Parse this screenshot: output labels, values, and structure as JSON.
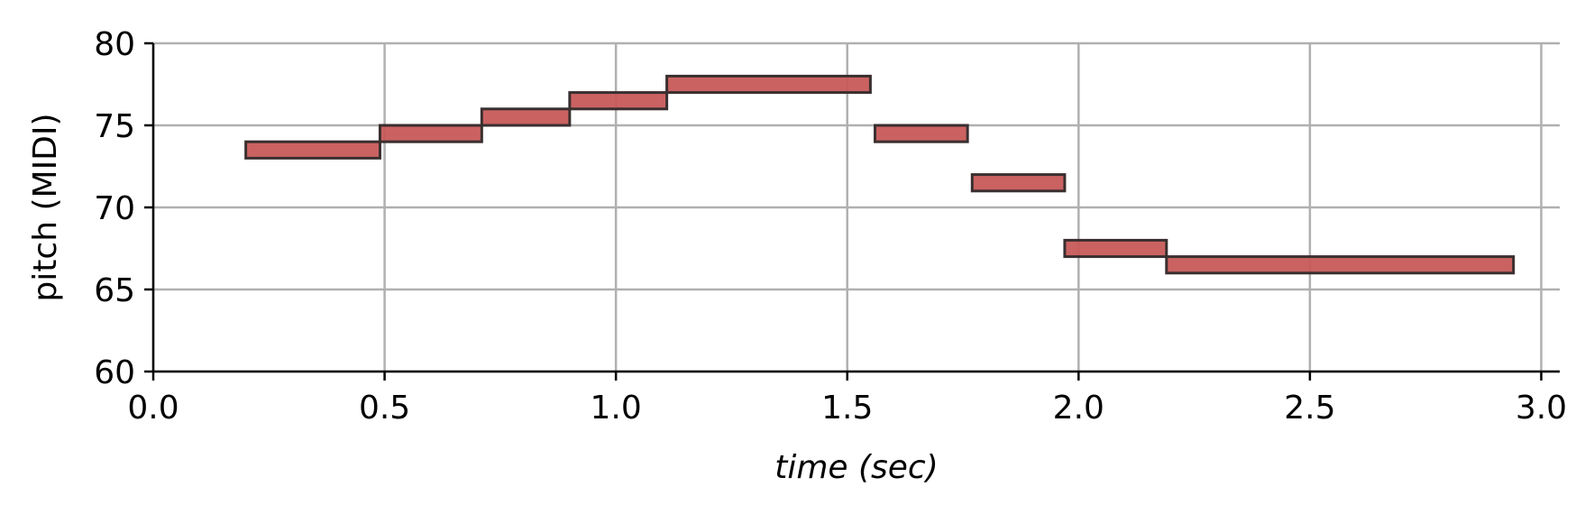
{
  "chart_data": {
    "type": "piano-roll",
    "title": "",
    "xlabel": "time (sec)",
    "ylabel": "pitch (MIDI)",
    "xlim": [
      0.0,
      3.04
    ],
    "ylim": [
      60,
      80
    ],
    "xticks": [
      0.0,
      0.5,
      1.0,
      1.5,
      2.0,
      2.5,
      3.0
    ],
    "xtick_labels": [
      "0.0",
      "0.5",
      "1.0",
      "1.5",
      "2.0",
      "2.5",
      "3.0"
    ],
    "yticks": [
      60,
      65,
      70,
      75,
      80
    ],
    "ytick_labels": [
      "60",
      "65",
      "70",
      "75",
      "80"
    ],
    "grid": true,
    "colors": {
      "note_fill": "#c85a5a",
      "note_edge": "#3a2f2f",
      "grid": "#b0b0b0",
      "axis": "#000000"
    },
    "notes": [
      {
        "start": 0.2,
        "end": 0.49,
        "pitch": 73
      },
      {
        "start": 0.49,
        "end": 0.71,
        "pitch": 74
      },
      {
        "start": 0.71,
        "end": 0.9,
        "pitch": 75
      },
      {
        "start": 0.9,
        "end": 1.11,
        "pitch": 76
      },
      {
        "start": 1.11,
        "end": 1.55,
        "pitch": 77
      },
      {
        "start": 1.56,
        "end": 1.76,
        "pitch": 74
      },
      {
        "start": 1.77,
        "end": 1.97,
        "pitch": 71
      },
      {
        "start": 1.97,
        "end": 2.19,
        "pitch": 67
      },
      {
        "start": 2.19,
        "end": 2.94,
        "pitch": 66
      }
    ]
  }
}
